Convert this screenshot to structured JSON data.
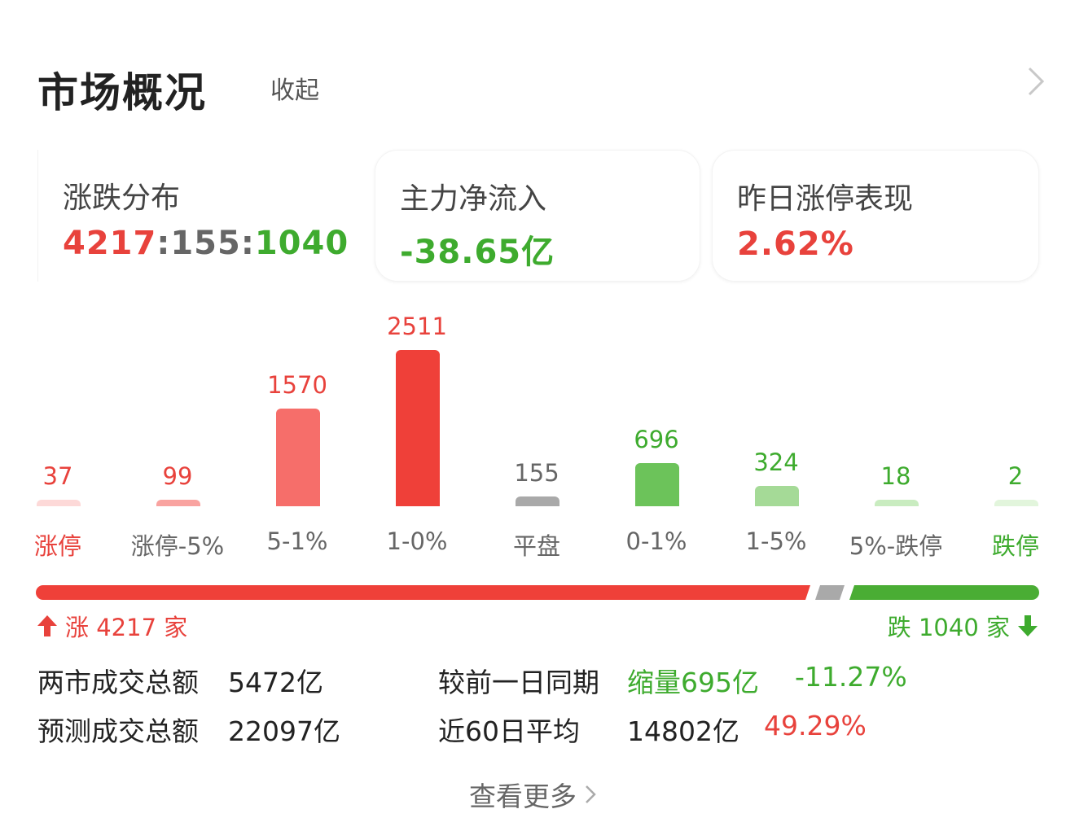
{
  "header": {
    "title": "市场概况",
    "collapse_label": "收起"
  },
  "cards": {
    "distribution": {
      "label": "涨跌分布",
      "up": "4217",
      "sep1": ":",
      "flat": "155",
      "sep2": ":",
      "down": "1040"
    },
    "net_inflow": {
      "label": "主力净流入",
      "value": "-38.65亿"
    },
    "limit_up_perf": {
      "label": "昨日涨停表现",
      "value": "2.62%"
    }
  },
  "chart_data": {
    "type": "bar",
    "categories": [
      "涨停",
      "涨停-5%",
      "5-1%",
      "1-0%",
      "平盘",
      "0-1%",
      "1-5%",
      "5%-跌停",
      "跌停"
    ],
    "values": [
      37,
      99,
      1570,
      2511,
      155,
      696,
      324,
      18,
      2
    ],
    "value_labels": [
      "37",
      "99",
      "1570",
      "2511",
      "155",
      "696",
      "324",
      "18",
      "2"
    ],
    "colors": [
      "#fdd9d8",
      "#f9a3a0",
      "#f66e6a",
      "#ef4039",
      "#a9a9a9",
      "#6cc35a",
      "#a5da97",
      "#c9ecc0",
      "#e2f5dc"
    ],
    "label_colors": [
      "#e8423c",
      "#e8423c",
      "#e8423c",
      "#e8423c",
      "#666666",
      "#3eab2e",
      "#3eab2e",
      "#3eab2e",
      "#3eab2e"
    ],
    "category_colors": [
      "#e8423c",
      "#666666",
      "#666666",
      "#666666",
      "#666666",
      "#666666",
      "#666666",
      "#666666",
      "#3eab2e"
    ],
    "ylim": [
      0,
      2511
    ]
  },
  "ratio_bar": {
    "up": 4217,
    "flat": 155,
    "down": 1040,
    "up_color": "#ef4039",
    "flat_color": "#a9a9a9",
    "down_color": "#4aad34",
    "up_text": "涨 4217 家",
    "down_text": "跌 1040 家"
  },
  "stats": {
    "row1": {
      "label": "两市成交总额",
      "value": "5472亿",
      "compare_label": "较前一日同期",
      "compare_value": "缩量695亿",
      "compare_pct": "-11.27%"
    },
    "row2": {
      "label": "预测成交总额",
      "value": "22097亿",
      "compare_label": "近60日平均",
      "compare_value": "14802亿",
      "compare_pct": "49.29%"
    }
  },
  "more_label": "查看更多"
}
